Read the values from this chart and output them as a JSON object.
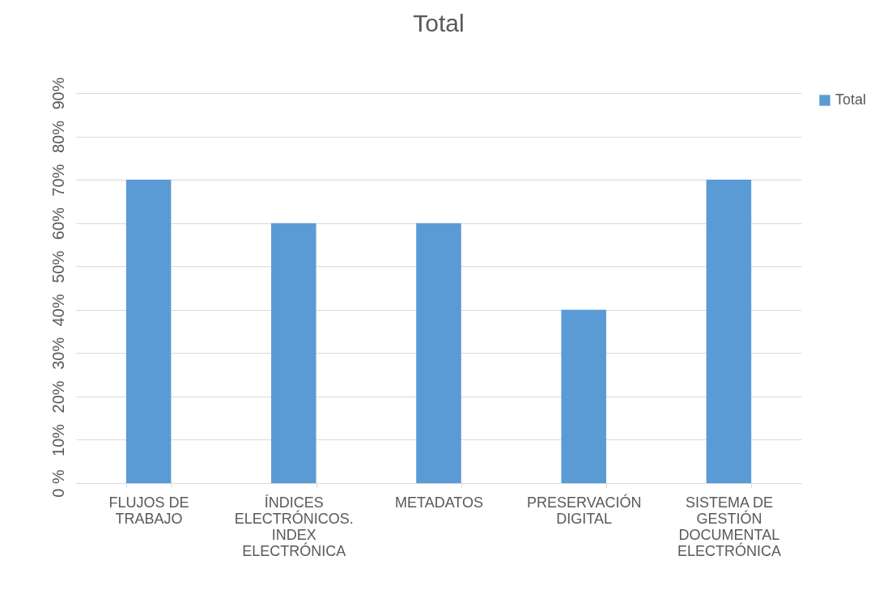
{
  "chart_data": {
    "type": "bar",
    "title": "Total",
    "categories": [
      "FLUJOS DE TRABAJO",
      "ÍNDICES ELECTRÓNICOS. INDEX ELECTRÓNICA",
      "METADATOS",
      "PRESERVACIÓN DIGITAL",
      "SISTEMA DE GESTIÓN DOCUMENTAL ELECTRÓNICA"
    ],
    "series": [
      {
        "name": "Total",
        "color": "#5b9bd5",
        "values": [
          70,
          60,
          60,
          40,
          70
        ]
      }
    ],
    "ylim": [
      0,
      90
    ],
    "yticks": [
      {
        "value": 0,
        "label": "0 %"
      },
      {
        "value": 10,
        "label": "10%"
      },
      {
        "value": 20,
        "label": "20%"
      },
      {
        "value": 30,
        "label": "30%"
      },
      {
        "value": 40,
        "label": "40%"
      },
      {
        "value": 50,
        "label": "50%"
      },
      {
        "value": 60,
        "label": "60%"
      },
      {
        "value": 70,
        "label": "70%"
      },
      {
        "value": 80,
        "label": "80%"
      },
      {
        "value": 90,
        "label": "90%"
      }
    ],
    "grid": "y",
    "legend": "right"
  }
}
